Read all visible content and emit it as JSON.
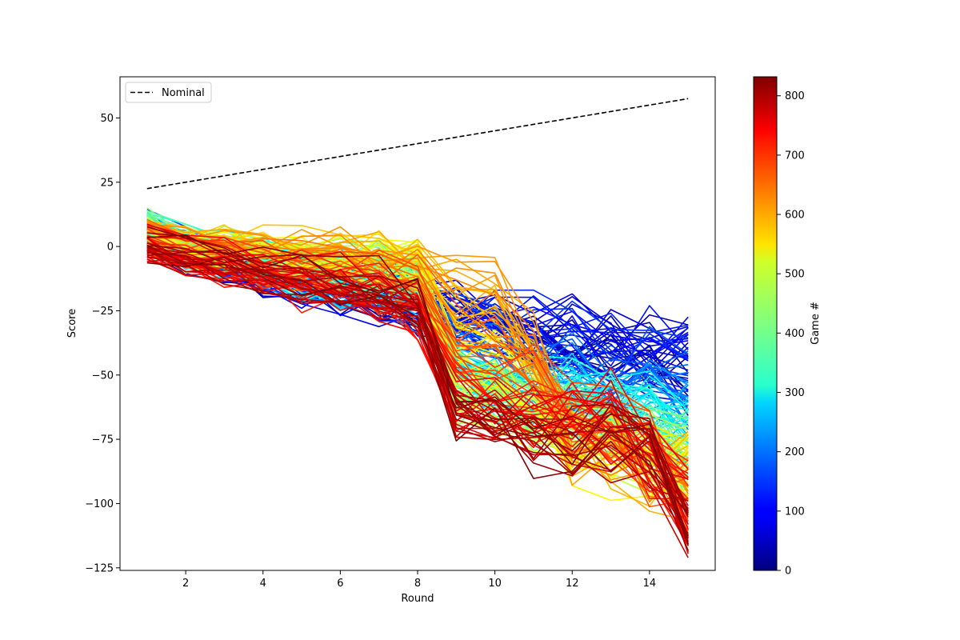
{
  "chart_data": {
    "type": "line",
    "title": "",
    "xlabel": "Round",
    "ylabel": "Score",
    "xlim": [
      0.3,
      15.7
    ],
    "ylim": [
      -126,
      66
    ],
    "xticks": [
      2,
      4,
      6,
      8,
      10,
      12,
      14
    ],
    "yticks": [
      -125,
      -100,
      -75,
      -50,
      -25,
      0,
      25,
      50
    ],
    "grid": false,
    "legend": {
      "placement": "top-left",
      "entries": [
        {
          "label": "Nominal",
          "style": "dashed",
          "color": "#000000"
        }
      ]
    },
    "nominal": {
      "name": "Nominal",
      "x": [
        1,
        15
      ],
      "y": [
        22.5,
        57.5
      ],
      "color": "#000000",
      "style": "dashed"
    },
    "colorbar": {
      "label": "Game #",
      "colormap": "jet",
      "range": [
        0,
        832
      ],
      "ticks": [
        0,
        100,
        200,
        300,
        400,
        500,
        600,
        700,
        800
      ]
    },
    "games": {
      "count": 833,
      "rounds": [
        1,
        2,
        3,
        4,
        5,
        6,
        7,
        8,
        9,
        10,
        11,
        12,
        13,
        14,
        15
      ],
      "groups": [
        {
          "games": "0-80",
          "y": [
            4,
            -3,
            -6,
            -12,
            -15,
            -17,
            -20,
            -24,
            -27,
            -31,
            -35,
            -38,
            -42,
            -45,
            -50
          ]
        },
        {
          "games": "80-180",
          "y": [
            5,
            -2,
            -5,
            -10,
            -13,
            -15,
            -18,
            -21,
            -24,
            -27,
            -30,
            -33,
            -36,
            -39,
            -43
          ]
        },
        {
          "games": "180-280",
          "y": [
            8,
            0,
            -3,
            -8,
            -11,
            -13,
            -16,
            -19,
            -45,
            -50,
            -55,
            -58,
            -60,
            -62,
            -65
          ]
        },
        {
          "games": "280-380",
          "y": [
            10,
            0,
            -2,
            -6,
            -9,
            -11,
            -13,
            -16,
            -50,
            -55,
            -60,
            -60,
            -63,
            -68,
            -80
          ]
        },
        {
          "games": "380-500",
          "y": [
            6,
            -2,
            -1,
            -4,
            -5,
            -6,
            -4,
            -6,
            -63,
            -60,
            -70,
            -75,
            -78,
            -80,
            -85
          ]
        },
        {
          "games": "500-600",
          "y": [
            4,
            0,
            0,
            -2,
            -3,
            -3,
            -5,
            -8,
            -12,
            -15,
            -40,
            -78,
            -82,
            -88,
            -90
          ]
        },
        {
          "games": "600-700",
          "y": [
            2,
            -4,
            -6,
            -10,
            -14,
            -15,
            -18,
            -25,
            -60,
            -63,
            -60,
            -62,
            -65,
            -80,
            -100
          ]
        },
        {
          "games": "700-832",
          "y": [
            0,
            -2,
            -4,
            -8,
            -11,
            -12,
            -15,
            -20,
            -63,
            -66,
            -82,
            -80,
            -78,
            -76,
            -112
          ]
        }
      ]
    }
  }
}
